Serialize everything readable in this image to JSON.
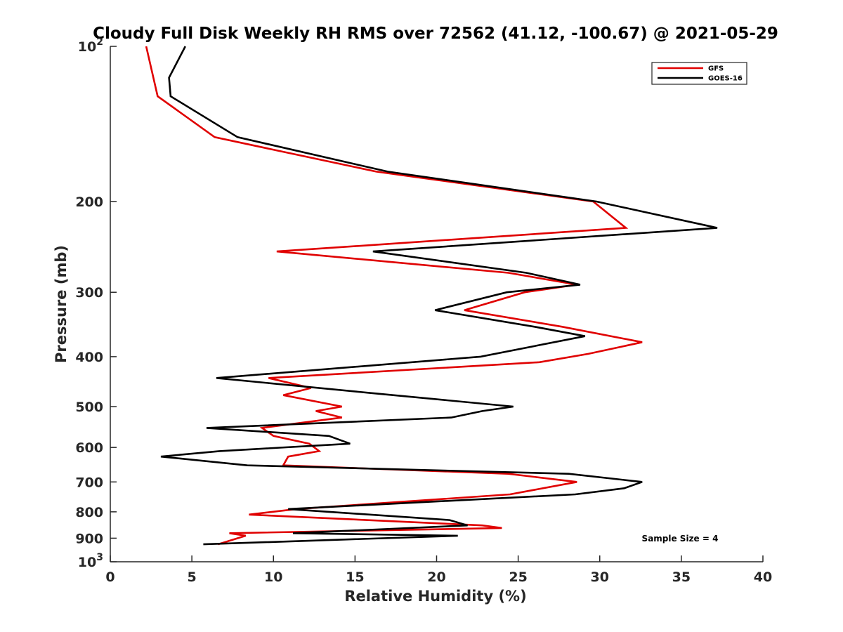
{
  "chart_data": {
    "type": "line",
    "title": "Cloudy Full Disk Weekly RH RMS over 72562 (41.12, -100.67) @ 2021-05-29",
    "xlabel": "Relative Humidity (%)",
    "ylabel": "Pressure (mb)",
    "xlim": [
      0,
      40
    ],
    "ylim": [
      100,
      1000
    ],
    "y_scale": "log",
    "y_reversed": true,
    "x_ticks": [
      "0",
      "5",
      "10",
      "15",
      "20",
      "25",
      "30",
      "35",
      "40"
    ],
    "y_ticks": [
      {
        "value": 100,
        "base": "10",
        "exp": "2"
      },
      {
        "value": 200,
        "label": "200"
      },
      {
        "value": 300,
        "label": "300"
      },
      {
        "value": 400,
        "label": "400"
      },
      {
        "value": 500,
        "label": "500"
      },
      {
        "value": 600,
        "label": "600"
      },
      {
        "value": 700,
        "label": "700"
      },
      {
        "value": 800,
        "label": "800"
      },
      {
        "value": 900,
        "label": "900"
      },
      {
        "value": 1000,
        "base": "10",
        "exp": "3"
      }
    ],
    "grid": false,
    "legend_position": "top-right",
    "annotation": "Sample Size = 4",
    "series": [
      {
        "name": "GFS",
        "color": "#e00000",
        "points": [
          [
            2.2,
            100
          ],
          [
            2.9,
            125
          ],
          [
            6.4,
            150
          ],
          [
            16.3,
            175
          ],
          [
            29.6,
            200
          ],
          [
            31.6,
            225
          ],
          [
            10.2,
            250
          ],
          [
            24.4,
            275
          ],
          [
            28.6,
            290
          ],
          [
            25.4,
            300
          ],
          [
            21.7,
            325
          ],
          [
            27.7,
            350
          ],
          [
            32.6,
            375
          ],
          [
            29.3,
            395
          ],
          [
            26.3,
            410
          ],
          [
            9.7,
            440
          ],
          [
            12.3,
            460
          ],
          [
            10.6,
            475
          ],
          [
            14.2,
            500
          ],
          [
            12.6,
            510
          ],
          [
            14.2,
            525
          ],
          [
            9.3,
            550
          ],
          [
            10.0,
            570
          ],
          [
            12.2,
            590
          ],
          [
            12.8,
            610
          ],
          [
            10.9,
            625
          ],
          [
            10.6,
            650
          ],
          [
            24.4,
            675
          ],
          [
            28.6,
            700
          ],
          [
            24.5,
            740
          ],
          [
            11.4,
            790
          ],
          [
            8.5,
            810
          ],
          [
            22.8,
            850
          ],
          [
            24.0,
            860
          ],
          [
            7.3,
            880
          ],
          [
            8.3,
            890
          ],
          [
            6.6,
            925
          ]
        ]
      },
      {
        "name": "GOES-16",
        "color": "#000000",
        "points": [
          [
            4.6,
            100
          ],
          [
            3.6,
            115
          ],
          [
            3.7,
            125
          ],
          [
            7.8,
            150
          ],
          [
            17.0,
            175
          ],
          [
            29.8,
            200
          ],
          [
            37.2,
            225
          ],
          [
            16.1,
            250
          ],
          [
            25.5,
            275
          ],
          [
            28.8,
            290
          ],
          [
            24.3,
            300
          ],
          [
            19.9,
            325
          ],
          [
            26.0,
            350
          ],
          [
            29.1,
            365
          ],
          [
            22.7,
            400
          ],
          [
            6.5,
            440
          ],
          [
            15.8,
            470
          ],
          [
            24.7,
            500
          ],
          [
            22.8,
            510
          ],
          [
            20.9,
            525
          ],
          [
            5.9,
            550
          ],
          [
            13.4,
            570
          ],
          [
            14.7,
            590
          ],
          [
            6.7,
            610
          ],
          [
            3.1,
            625
          ],
          [
            8.4,
            650
          ],
          [
            28.1,
            675
          ],
          [
            32.6,
            700
          ],
          [
            31.5,
            720
          ],
          [
            28.5,
            740
          ],
          [
            10.9,
            790
          ],
          [
            20.8,
            830
          ],
          [
            21.9,
            850
          ],
          [
            11.2,
            880
          ],
          [
            21.3,
            890
          ],
          [
            5.7,
            925
          ]
        ]
      }
    ]
  }
}
